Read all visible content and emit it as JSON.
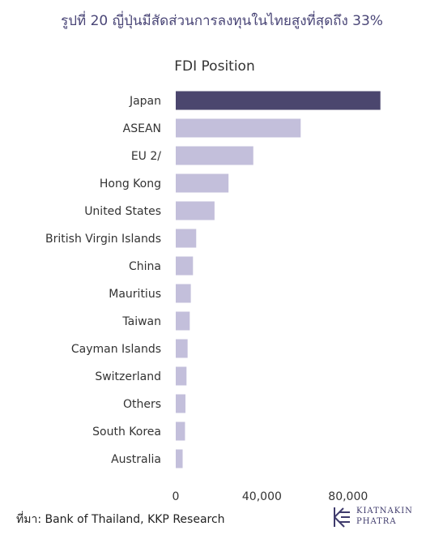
{
  "headline": "รูปที่ 20 ญี่ปุ่นมีสัดส่วนการลงทุนในไทยสูงที่สุดถึง 33%",
  "source": "ที่มา: Bank of Thailand, KKP Research",
  "logo": {
    "line1": "KIATNAKIN",
    "line2": "PHATRA"
  },
  "colors": {
    "highlight": "#4b466e",
    "bar": "#c3bfdb",
    "headline": "#4a4677"
  },
  "chart_data": {
    "type": "bar",
    "orientation": "horizontal",
    "title": "FDI Position",
    "categories": [
      "Japan",
      "ASEAN",
      "EU 2/",
      "Hong Kong",
      "United States",
      "British Virgin Islands",
      "China",
      "Mauritius",
      "Taiwan",
      "Cayman Islands",
      "Switzerland",
      "Others",
      "South Korea",
      "Australia"
    ],
    "values": [
      95000,
      58000,
      36000,
      24500,
      18000,
      9500,
      8000,
      7000,
      6500,
      5500,
      5000,
      4500,
      4300,
      3200
    ],
    "highlighted": [
      "Japan"
    ],
    "xlim": [
      0,
      100000
    ],
    "xticks": [
      0,
      40000,
      80000
    ],
    "xtick_labels": [
      "0",
      "40,000",
      "80,000"
    ],
    "grid": false
  }
}
